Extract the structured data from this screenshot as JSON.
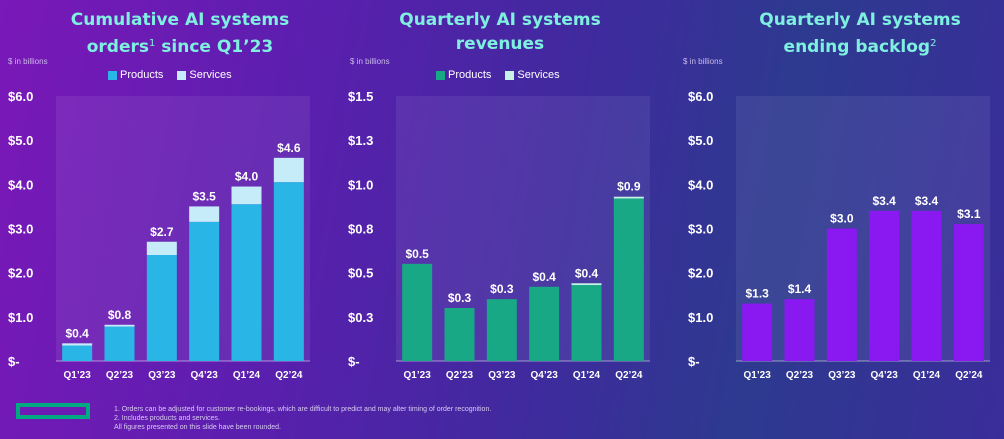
{
  "chart_data": [
    {
      "type": "bar",
      "stacked": true,
      "title_main": "Cumulative AI systems",
      "title_line2": "orders",
      "title_sup": "1",
      "title_tail": " since Q1’23",
      "unit_label": "$ in billions",
      "categories": [
        "Q1’23",
        "Q2’23",
        "Q3’23",
        "Q4’23",
        "Q1’24",
        "Q2’24"
      ],
      "series": [
        {
          "name": "Products",
          "color": "#29b6e6",
          "values": [
            0.35,
            0.78,
            2.4,
            3.15,
            3.55,
            4.05
          ]
        },
        {
          "name": "Services",
          "color": "#c6ecfa",
          "values": [
            0.05,
            0.04,
            0.3,
            0.35,
            0.4,
            0.55
          ]
        }
      ],
      "data_labels": [
        "$0.4",
        "$0.8",
        "$2.7",
        "$3.5",
        "$4.0",
        "$4.6"
      ],
      "y_ticks": [
        "$-",
        "$1.0",
        "$2.0",
        "$3.0",
        "$4.0",
        "$5.0",
        "$6.0"
      ],
      "ylim": [
        0,
        6
      ],
      "legend_position": "top"
    },
    {
      "type": "bar",
      "stacked": true,
      "title_main": "Quarterly AI systems",
      "title_line2": "revenues",
      "unit_label": "$ in billions",
      "categories": [
        "Q1’23",
        "Q2’23",
        "Q3’23",
        "Q4’23",
        "Q1’24",
        "Q2’24"
      ],
      "series": [
        {
          "name": "Products",
          "color": "#19a886",
          "values": [
            0.55,
            0.3,
            0.35,
            0.42,
            0.43,
            0.92
          ]
        },
        {
          "name": "Services",
          "color": "#c6f2e6",
          "values": [
            0.0,
            0.0,
            0.0,
            0.0,
            0.01,
            0.01
          ]
        }
      ],
      "data_labels": [
        "$0.5",
        "$0.3",
        "$0.3",
        "$0.4",
        "$0.4",
        "$0.9"
      ],
      "y_ticks": [
        "$-",
        "$0.3",
        "$0.5",
        "$0.8",
        "$1.0",
        "$1.3",
        "$1.5"
      ],
      "ylim": [
        0,
        1.5
      ],
      "legend_position": "top"
    },
    {
      "type": "bar",
      "stacked": false,
      "title_main": "Quarterly AI systems",
      "title_line2": "ending backlog",
      "title_sup": "2",
      "unit_label": "$ in billions",
      "categories": [
        "Q1’23",
        "Q2’23",
        "Q3’23",
        "Q4’23",
        "Q1’24",
        "Q2’24"
      ],
      "series": [
        {
          "name": "",
          "color": "#8a18f0",
          "values": [
            1.3,
            1.4,
            3.0,
            3.4,
            3.4,
            3.1
          ]
        }
      ],
      "data_labels": [
        "$1.3",
        "$1.4",
        "$3.0",
        "$3.4",
        "$3.4",
        "$3.1"
      ],
      "y_ticks": [
        "$-",
        "$1.0",
        "$2.0",
        "$3.0",
        "$4.0",
        "$5.0",
        "$6.0"
      ],
      "ylim": [
        0,
        6
      ]
    }
  ],
  "footnotes": [
    "1.  Orders can be adjusted for customer re-bookings, which are difficult to predict and may alter timing of order recognition.",
    "2.  Includes products and services.",
    "All figures presented on this slide have been rounded."
  ],
  "colors": {
    "title": "#7ff0e0",
    "logo": "#01a982"
  }
}
